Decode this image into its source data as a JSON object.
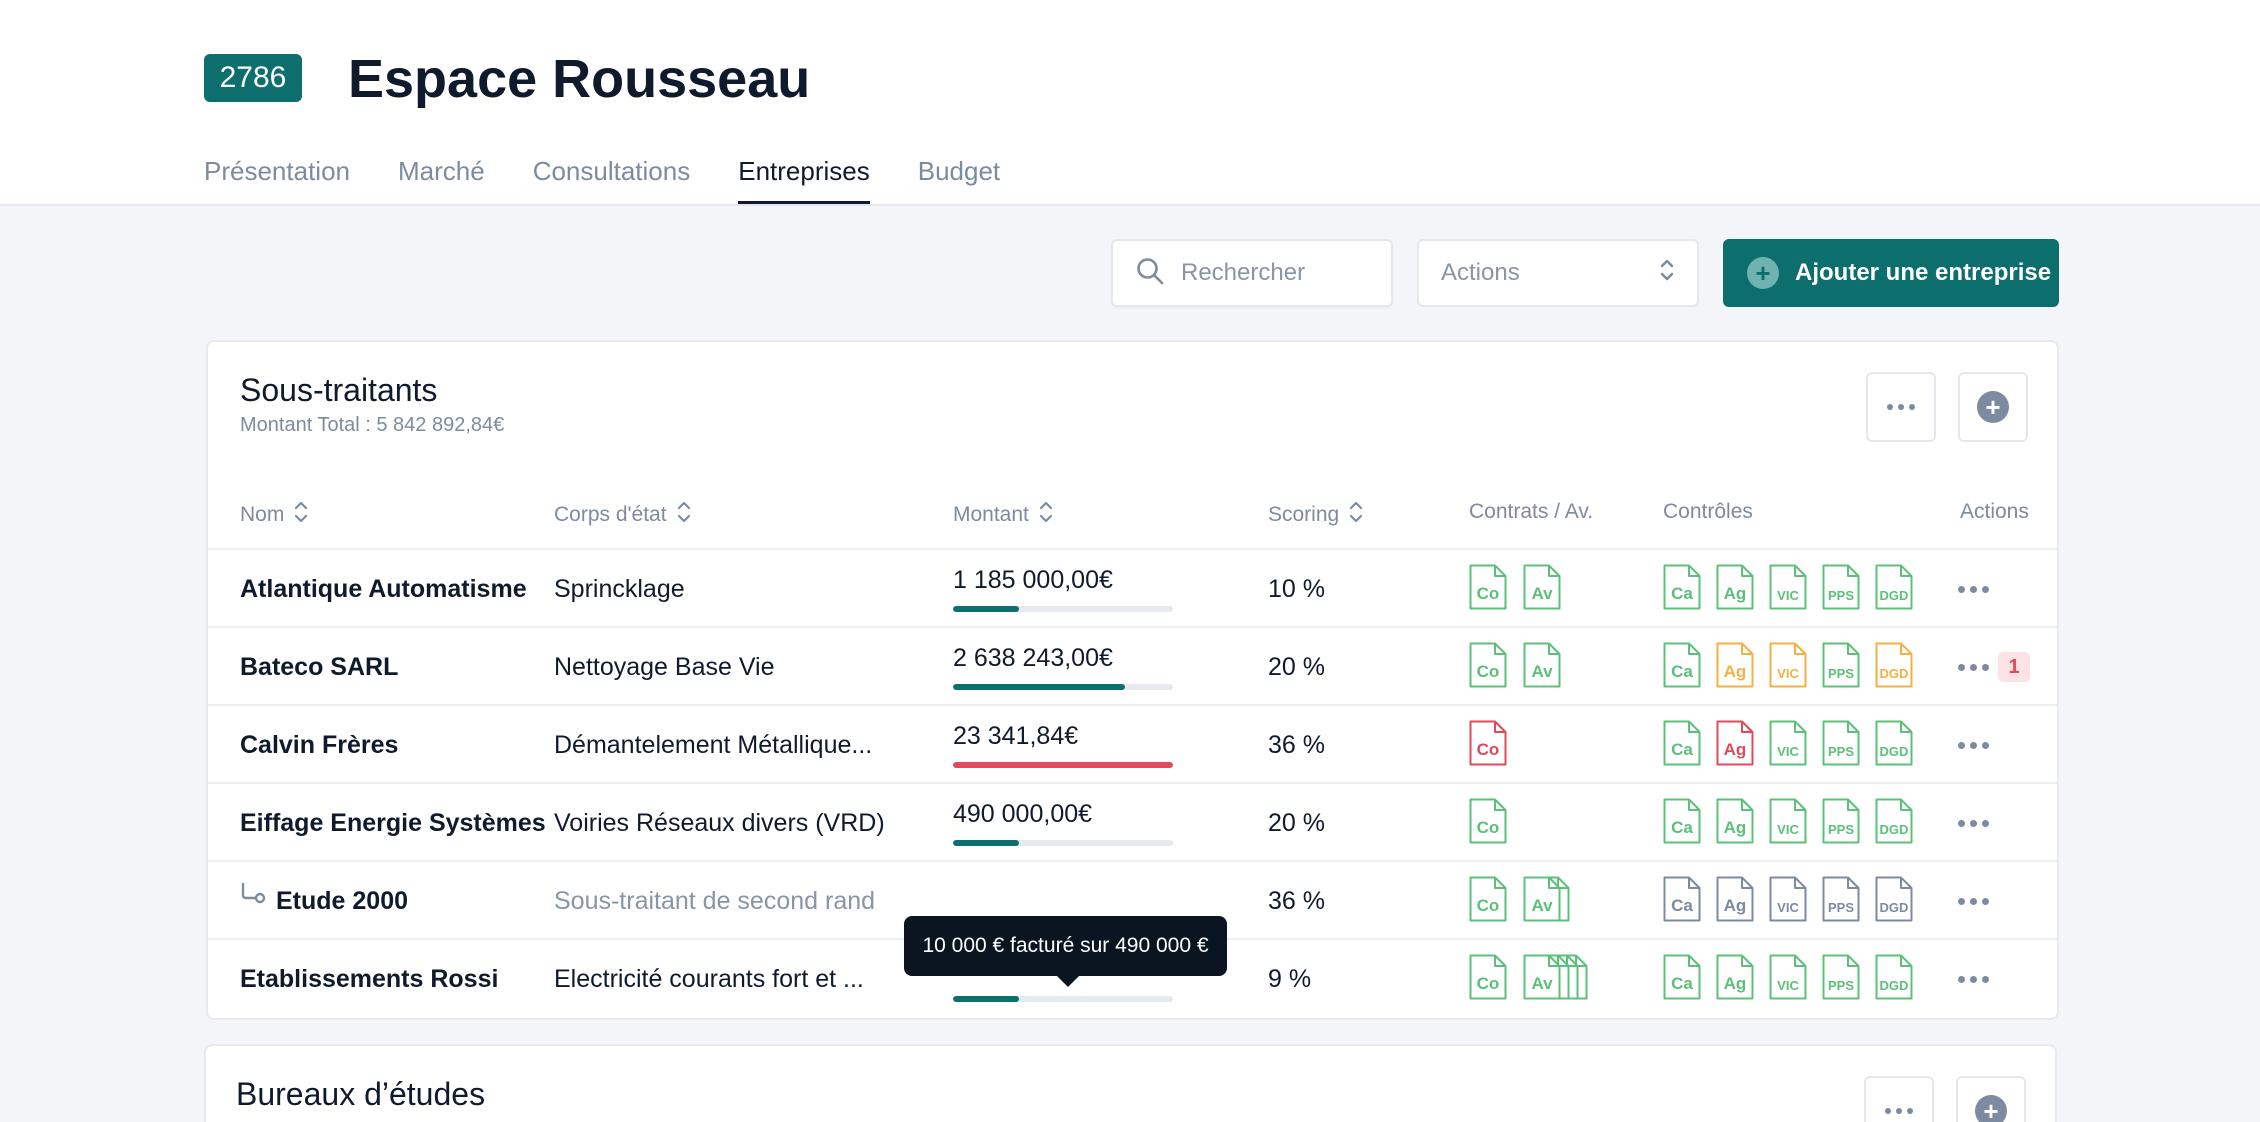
{
  "header": {
    "badge": "2786",
    "title": "Espace Rousseau",
    "tabs": [
      "Présentation",
      "Marché",
      "Consultations",
      "Entreprises",
      "Budget"
    ],
    "active_tab": "Entreprises"
  },
  "toolbar": {
    "search_placeholder": "Rechercher",
    "actions_label": "Actions",
    "add_label": "Ajouter une entreprise"
  },
  "section": {
    "title": "Sous-traitants",
    "subtitle": "Montant Total : 5 842 892,84€",
    "columns": {
      "nom": "Nom",
      "corps": "Corps d'état",
      "montant": "Montant",
      "scoring": "Scoring",
      "contrats": "Contrats / Av.",
      "controles": "Contrôles",
      "actions": "Actions"
    },
    "rows": [
      {
        "nom": "Atlantique Automatisme",
        "corps": "Sprincklage",
        "montant": "1 185 000,00€",
        "progress": 0.3,
        "bar_color": "#0d6e6e",
        "scoring": "10 %",
        "contrats": [
          {
            "label": "Co",
            "color": "#5cc07a",
            "stack": 1
          },
          {
            "label": "Av",
            "color": "#5cc07a",
            "stack": 1
          }
        ],
        "controles": [
          {
            "label": "Ca",
            "color": "#5cc07a"
          },
          {
            "label": "Ag",
            "color": "#5cc07a"
          },
          {
            "label": "VIC",
            "color": "#5cc07a"
          },
          {
            "label": "PPS",
            "color": "#5cc07a"
          },
          {
            "label": "DGD",
            "color": "#5cc07a"
          }
        ],
        "badge": ""
      },
      {
        "nom": "Bateco SARL",
        "corps": "Nettoyage Base Vie",
        "montant": "2 638 243,00€",
        "progress": 0.78,
        "bar_color": "#0d6e6e",
        "scoring": "20 %",
        "contrats": [
          {
            "label": "Co",
            "color": "#5cc07a",
            "stack": 1
          },
          {
            "label": "Av",
            "color": "#5cc07a",
            "stack": 1
          }
        ],
        "controles": [
          {
            "label": "Ca",
            "color": "#5cc07a"
          },
          {
            "label": "Ag",
            "color": "#f5b041"
          },
          {
            "label": "VIC",
            "color": "#f5b041"
          },
          {
            "label": "PPS",
            "color": "#5cc07a"
          },
          {
            "label": "DGD",
            "color": "#f5b041"
          }
        ],
        "badge": "1"
      },
      {
        "nom": "Calvin Frères",
        "corps": "Démantelement Métallique...",
        "montant": "23 341,84€",
        "progress": 1.0,
        "bar_color": "#e04a5a",
        "scoring": "36 %",
        "contrats": [
          {
            "label": "Co",
            "color": "#e04a5a",
            "stack": 1
          }
        ],
        "controles": [
          {
            "label": "Ca",
            "color": "#5cc07a"
          },
          {
            "label": "Ag",
            "color": "#e04a5a"
          },
          {
            "label": "VIC",
            "color": "#5cc07a"
          },
          {
            "label": "PPS",
            "color": "#5cc07a"
          },
          {
            "label": "DGD",
            "color": "#5cc07a"
          }
        ],
        "badge": ""
      },
      {
        "nom": "Eiffage Energie Systèmes",
        "corps": "Voiries Réseaux divers (VRD)",
        "montant": "490 000,00€",
        "progress": 0.3,
        "bar_color": "#0d6e6e",
        "scoring": "20 %",
        "contrats": [
          {
            "label": "Co",
            "color": "#5cc07a",
            "stack": 1
          }
        ],
        "controles": [
          {
            "label": "Ca",
            "color": "#5cc07a"
          },
          {
            "label": "Ag",
            "color": "#5cc07a"
          },
          {
            "label": "VIC",
            "color": "#5cc07a"
          },
          {
            "label": "PPS",
            "color": "#5cc07a"
          },
          {
            "label": "DGD",
            "color": "#5cc07a"
          }
        ],
        "badge": ""
      },
      {
        "nom": "Etude 2000",
        "corps": "Sous-traitant de second rand",
        "montant": "",
        "progress": null,
        "bar_color": "",
        "scoring": "36 %",
        "sub": true,
        "contrats": [
          {
            "label": "Co",
            "color": "#5cc07a",
            "stack": 1
          },
          {
            "label": "Av",
            "color": "#5cc07a",
            "stack": 2
          }
        ],
        "controles": [
          {
            "label": "Ca",
            "color": "#7d8ba0"
          },
          {
            "label": "Ag",
            "color": "#7d8ba0"
          },
          {
            "label": "VIC",
            "color": "#7d8ba0"
          },
          {
            "label": "PPS",
            "color": "#7d8ba0"
          },
          {
            "label": "DGD",
            "color": "#7d8ba0"
          }
        ],
        "badge": ""
      },
      {
        "nom": "Etablissements Rossi",
        "corps": "Electricité courants fort et ...",
        "montant": "",
        "progress": 0.3,
        "bar_color": "#0d6e6e",
        "scoring": "9 %",
        "contrats": [
          {
            "label": "Co",
            "color": "#5cc07a",
            "stack": 1
          },
          {
            "label": "Av",
            "color": "#5cc07a",
            "stack": 4
          }
        ],
        "controles": [
          {
            "label": "Ca",
            "color": "#5cc07a"
          },
          {
            "label": "Ag",
            "color": "#5cc07a"
          },
          {
            "label": "VIC",
            "color": "#5cc07a"
          },
          {
            "label": "PPS",
            "color": "#5cc07a"
          },
          {
            "label": "DGD",
            "color": "#5cc07a"
          }
        ],
        "badge": ""
      }
    ],
    "tooltip": "10 000 € facturé sur 490 000 €"
  },
  "section2": {
    "title": "Bureaux d’études"
  },
  "colors": {
    "primary": "#0d6e6e",
    "ok": "#5cc07a",
    "warning": "#f5b041",
    "error": "#e04a5a",
    "neutral": "#7d8ba0"
  }
}
